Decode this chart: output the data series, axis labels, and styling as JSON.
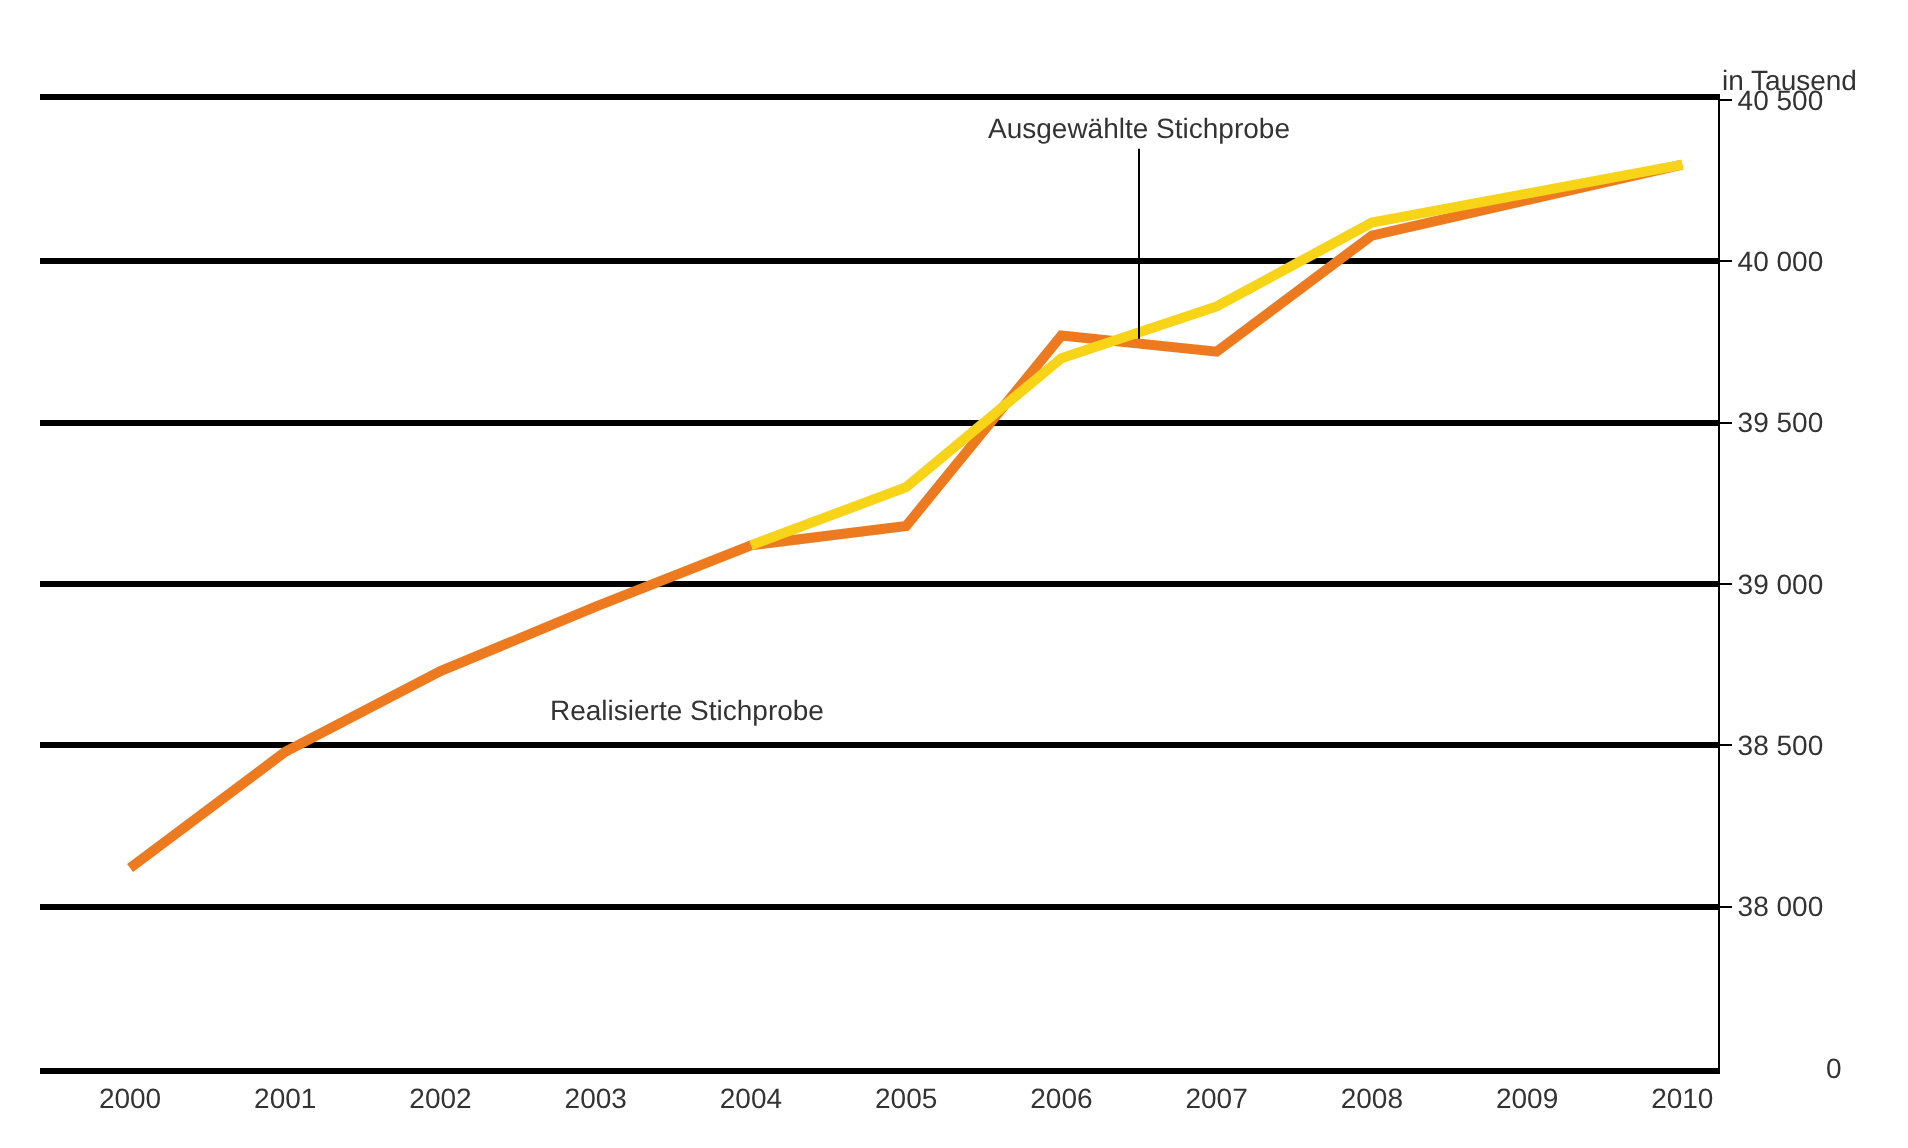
{
  "chart_data": {
    "type": "line",
    "ylabel": "in Tausend",
    "x": [
      2000,
      2001,
      2002,
      2003,
      2004,
      2005,
      2006,
      2007,
      2008,
      2009,
      2010
    ],
    "series": [
      {
        "color": "#ee7a1f",
        "values": [
          38120,
          38480,
          38730,
          38930,
          39120,
          39180,
          39770,
          39720,
          40080,
          40190,
          40300
        ]
      },
      {
        "color": "#f7d417",
        "values": [
          null,
          null,
          null,
          null,
          39120,
          39300,
          39700,
          39860,
          40120,
          40210,
          40300
        ]
      }
    ],
    "xlim": [
      1999.42,
      2010.23
    ],
    "xticks": [
      2000,
      2001,
      2002,
      2003,
      2004,
      2005,
      2006,
      2007,
      2008,
      2009,
      2010
    ],
    "ylim": [
      37500,
      40500
    ],
    "yticks": [
      {
        "value": 38000,
        "label": "38 000"
      },
      {
        "value": 38500,
        "label": "38 500"
      },
      {
        "value": 39000,
        "label": "39 000"
      },
      {
        "value": 39500,
        "label": "39 500"
      },
      {
        "value": 40000,
        "label": "40 000"
      },
      {
        "value": 40500,
        "label": "40 500"
      }
    ],
    "grid": "y",
    "legend": false,
    "marker": "none",
    "line_style": "solid",
    "annotations": [
      {
        "text": "Ausgewählte Stichprobe",
        "x": 2006.5,
        "y": 39760
      },
      "Realisierte Stichprobe",
      "0"
    ]
  }
}
